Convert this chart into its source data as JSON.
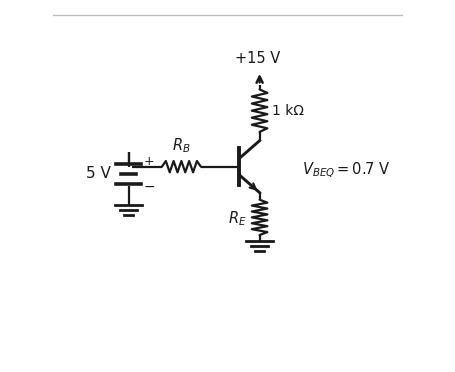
{
  "bg_color": "#ffffff",
  "line_color": "#1a1a1a",
  "text_color": "#1a1a1a",
  "vcc_label": "+15 V",
  "rc_label": "1 kΩ",
  "rb_label": "R_B",
  "re_label": "R_E",
  "v_label": "5 V",
  "vbeq_label": "V_{BEQ} = 0.7 V",
  "fig_width": 4.55,
  "fig_height": 3.72,
  "dpi": 100
}
